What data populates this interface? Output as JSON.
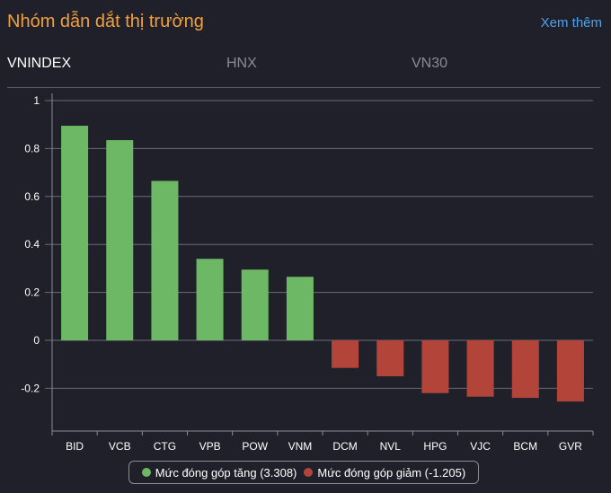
{
  "header": {
    "title": "Nhóm dẫn dắt thị trường",
    "more_label": "Xem thêm"
  },
  "tabs": [
    {
      "label": "VNINDEX",
      "active": true
    },
    {
      "label": "HNX",
      "active": false
    },
    {
      "label": "VN30",
      "active": false
    }
  ],
  "colors": {
    "up": "#6db864",
    "down": "#b2443a"
  },
  "chart_data": {
    "type": "bar",
    "categories": [
      "BID",
      "VCB",
      "CTG",
      "VPB",
      "POW",
      "VNM",
      "DCM",
      "NVL",
      "HPG",
      "VJC",
      "BCM",
      "GVR"
    ],
    "values": [
      0.895,
      0.835,
      0.665,
      0.34,
      0.295,
      0.265,
      -0.115,
      -0.15,
      -0.22,
      -0.235,
      -0.24,
      -0.255
    ],
    "ylim": [
      -0.3,
      1
    ],
    "yticks": [
      1,
      0.8,
      0.6,
      0.4,
      0.2,
      0,
      -0.2
    ],
    "ytick_labels": [
      "1",
      "0.8",
      "0.6",
      "0.4",
      "0.2",
      "0",
      "-0.2"
    ],
    "grid": true,
    "legend": {
      "placement": "bottom",
      "items": [
        {
          "label": "Mức đóng góp tăng (3.308)",
          "color": "#6db864"
        },
        {
          "label": "Mức đóng góp giảm (-1.205)",
          "color": "#b2443a"
        }
      ]
    }
  }
}
